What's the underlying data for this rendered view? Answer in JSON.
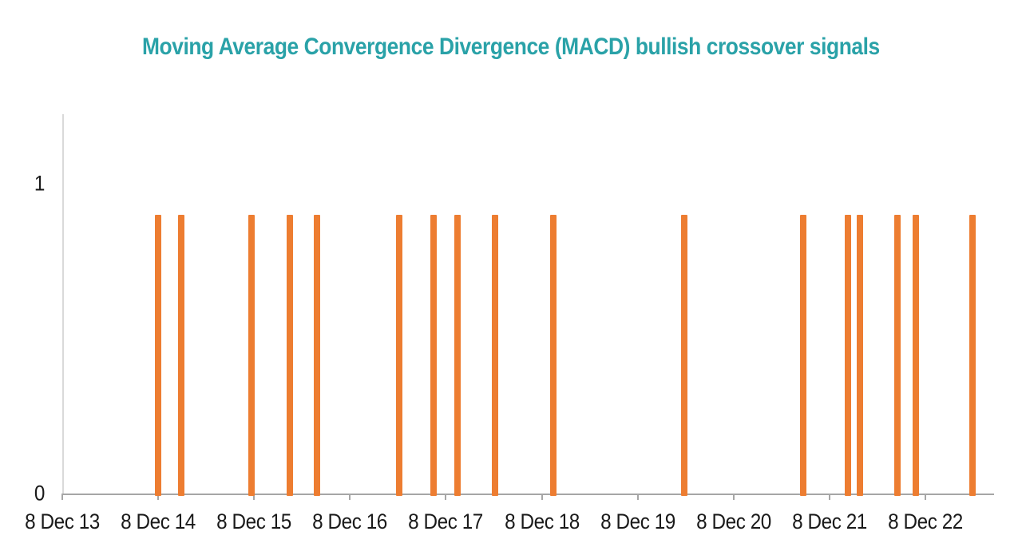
{
  "chart_data": {
    "type": "bar",
    "title": "Moving Average Convergence Divergence (MACD) bullish crossover signals",
    "colors": {
      "title": "#2AA2A8",
      "bar": "#ED7D31",
      "x_axis_line": "#A6A6A6",
      "y_axis_line": "#D9D9D9",
      "tick_mark": "#A6A6A6",
      "label_text": "#1A1A1A"
    },
    "x_axis": {
      "tick_labels": [
        "8 Dec 13",
        "8 Dec 14",
        "8 Dec 15",
        "8 Dec 16",
        "8 Dec 17",
        "8 Dec 18",
        "8 Dec 19",
        "8 Dec 20",
        "8 Dec 21",
        "8 Dec 22"
      ],
      "tick_interval": "1 year",
      "range_years_from_first_tick": [
        0,
        9.72
      ]
    },
    "y_axis": {
      "tick_labels": [
        "0",
        "1"
      ],
      "tick_values": [
        0,
        1
      ],
      "range": [
        0,
        1.22
      ],
      "grid": "off"
    },
    "legend": "none",
    "bar_value": 0.9,
    "signals_x_years": [
      1.0,
      1.24,
      1.97,
      2.37,
      2.66,
      3.51,
      3.87,
      4.12,
      4.51,
      5.12,
      6.49,
      7.73,
      8.19,
      8.32,
      8.71,
      8.9,
      9.49
    ]
  }
}
